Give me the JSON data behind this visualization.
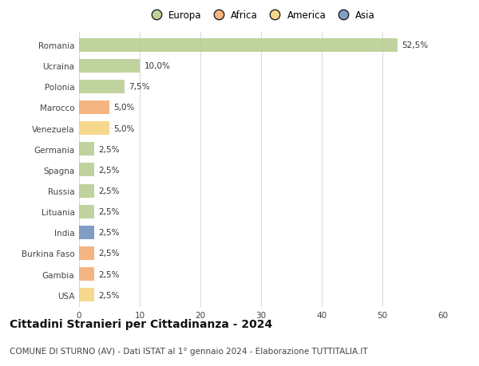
{
  "countries": [
    "Romania",
    "Ucraina",
    "Polonia",
    "Marocco",
    "Venezuela",
    "Germania",
    "Spagna",
    "Russia",
    "Lituania",
    "India",
    "Burkina Faso",
    "Gambia",
    "USA"
  ],
  "values": [
    52.5,
    10.0,
    7.5,
    5.0,
    5.0,
    2.5,
    2.5,
    2.5,
    2.5,
    2.5,
    2.5,
    2.5,
    2.5
  ],
  "labels": [
    "52,5%",
    "10,0%",
    "7,5%",
    "5,0%",
    "5,0%",
    "2,5%",
    "2,5%",
    "2,5%",
    "2,5%",
    "2,5%",
    "2,5%",
    "2,5%",
    "2,5%"
  ],
  "regions": [
    "Europa",
    "Europa",
    "Europa",
    "Africa",
    "America",
    "Europa",
    "Europa",
    "Europa",
    "Europa",
    "Asia",
    "Africa",
    "Africa",
    "America"
  ],
  "region_colors": {
    "Europa": "#b5cc8e",
    "Africa": "#f4a86c",
    "America": "#f5d07a",
    "Asia": "#6b8cba"
  },
  "legend_order": [
    "Europa",
    "Africa",
    "America",
    "Asia"
  ],
  "xlim": [
    0,
    60
  ],
  "xticks": [
    0,
    10,
    20,
    30,
    40,
    50,
    60
  ],
  "title": "Cittadini Stranieri per Cittadinanza - 2024",
  "subtitle": "COMUNE DI STURNO (AV) - Dati ISTAT al 1° gennaio 2024 - Elaborazione TUTTITALIA.IT",
  "background_color": "#ffffff",
  "grid_color": "#d8d8d8",
  "bar_height": 0.65,
  "title_fontsize": 10,
  "subtitle_fontsize": 7.5,
  "label_fontsize": 7.5,
  "tick_fontsize": 7.5,
  "legend_fontsize": 8.5
}
